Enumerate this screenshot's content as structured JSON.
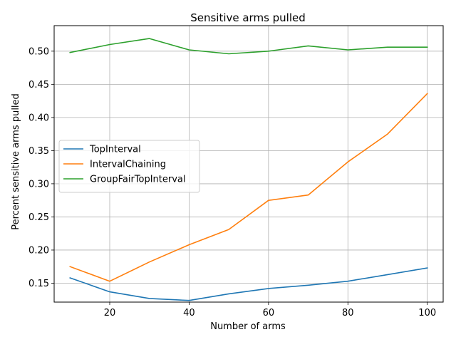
{
  "chart_data": {
    "type": "line",
    "title": "Sensitive arms pulled",
    "xlabel": "Number of arms",
    "ylabel": "Percent sensitive arms pulled",
    "x": [
      10,
      20,
      30,
      40,
      50,
      60,
      70,
      80,
      90,
      100
    ],
    "xlim": [
      6,
      104
    ],
    "ylim": [
      0.1215,
      0.5385
    ],
    "xticks": [
      "20",
      "40",
      "60",
      "80",
      "100"
    ],
    "yticks": [
      "0.15",
      "0.20",
      "0.25",
      "0.30",
      "0.35",
      "0.40",
      "0.45",
      "0.50"
    ],
    "grid": true,
    "legend_position": "center-left",
    "series": [
      {
        "name": "TopInterval",
        "color": "#1f77b4",
        "values": [
          0.158,
          0.137,
          0.127,
          0.124,
          0.134,
          0.142,
          0.147,
          0.153,
          0.163,
          0.173
        ]
      },
      {
        "name": "IntervalChaining",
        "color": "#ff7f0e",
        "values": [
          0.175,
          0.153,
          0.182,
          0.208,
          0.231,
          0.275,
          0.283,
          0.333,
          0.375,
          0.436
        ]
      },
      {
        "name": "GroupFairTopInterval",
        "color": "#2ca02c",
        "values": [
          0.498,
          0.51,
          0.519,
          0.502,
          0.496,
          0.5,
          0.508,
          0.502,
          0.506,
          0.506
        ]
      }
    ]
  }
}
